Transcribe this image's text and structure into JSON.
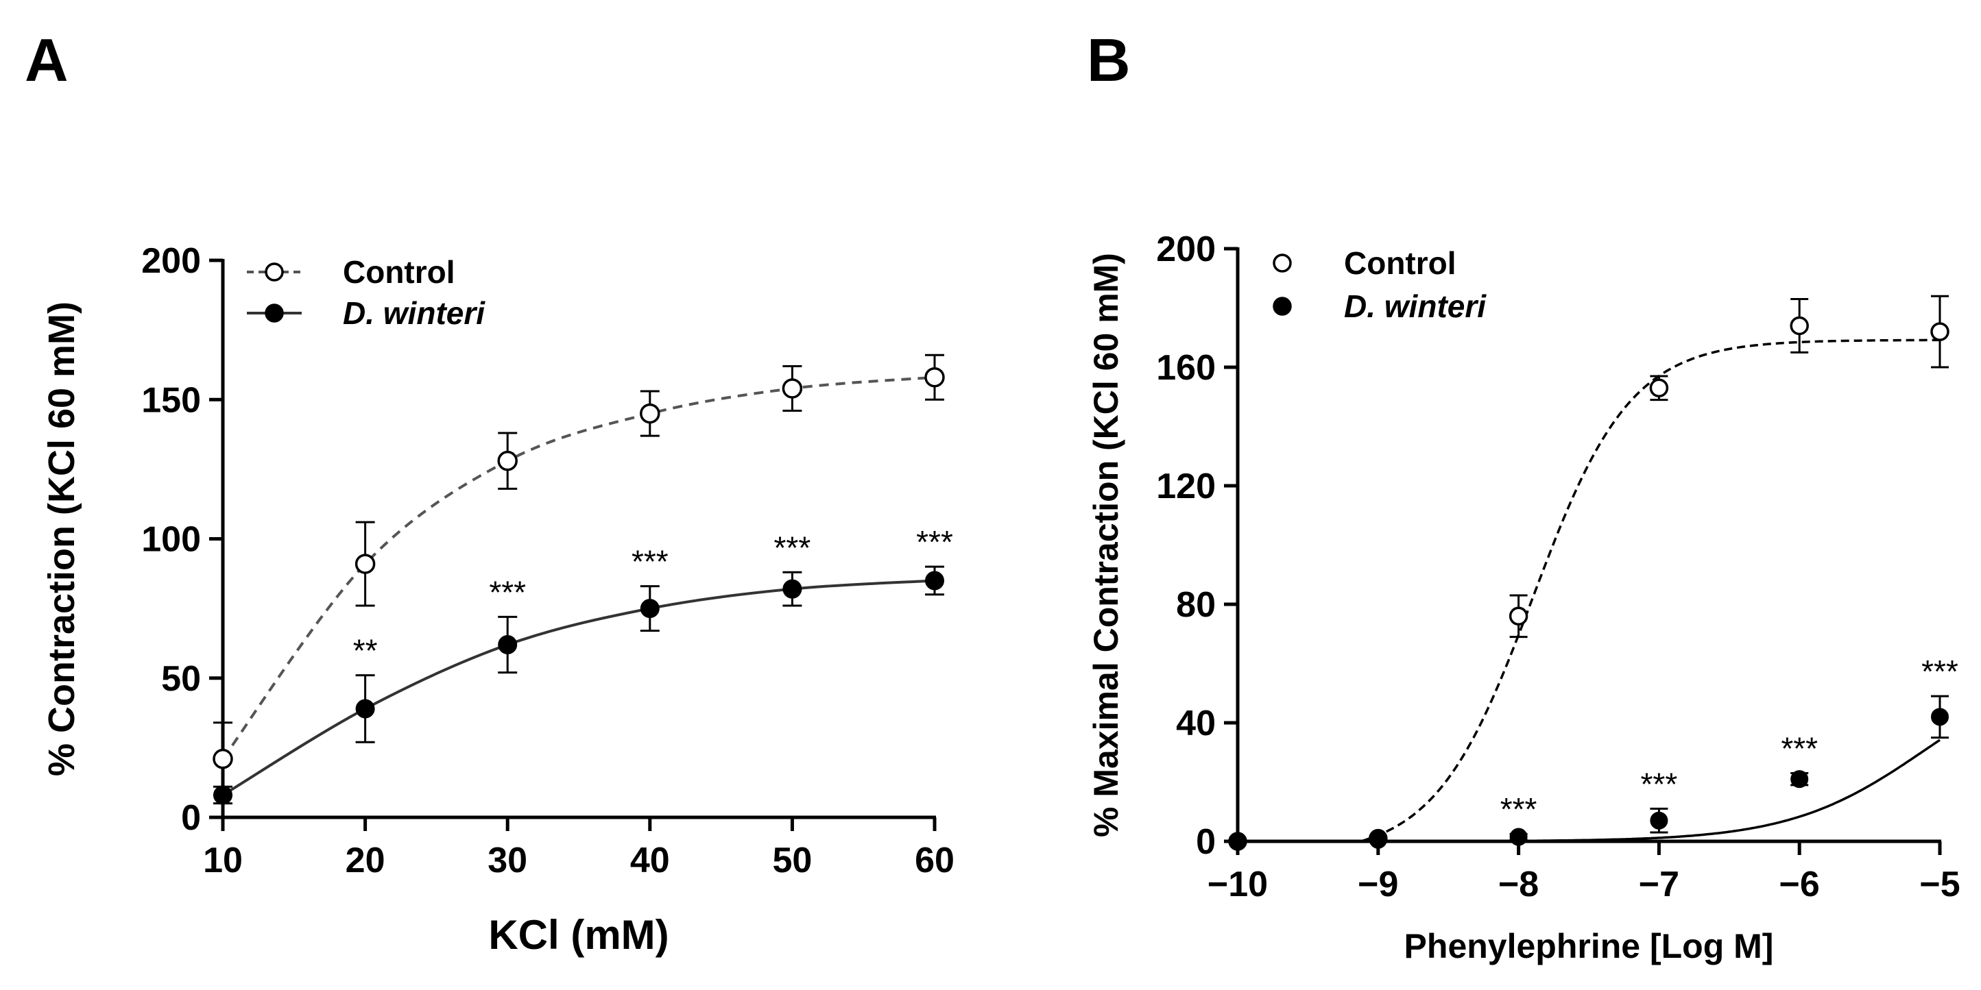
{
  "chart_data": [
    {
      "panel": "A",
      "type": "line",
      "xlabel": "KCl (mM)",
      "ylabel": "% Contraction (KCl 60 mM)",
      "xlim": [
        10,
        60
      ],
      "ylim": [
        0,
        200
      ],
      "xticks": [
        10,
        20,
        30,
        40,
        50,
        60
      ],
      "yticks": [
        0,
        50,
        100,
        150,
        200
      ],
      "legend_position": "top-left",
      "x": [
        10,
        20,
        30,
        40,
        50,
        60
      ],
      "series": [
        {
          "name": "Control",
          "marker": "open-circle",
          "line": "dashed",
          "values": [
            21,
            91,
            128,
            145,
            154,
            158
          ],
          "error": [
            13,
            15,
            10,
            8,
            8,
            8
          ]
        },
        {
          "name": "D. winteri",
          "marker": "filled-circle",
          "line": "solid",
          "values": [
            8,
            39,
            62,
            75,
            82,
            85
          ],
          "error": [
            3,
            12,
            10,
            8,
            6,
            5
          ]
        }
      ],
      "annotations": [
        {
          "x": 20,
          "text": "**"
        },
        {
          "x": 30,
          "text": "***"
        },
        {
          "x": 40,
          "text": "***"
        },
        {
          "x": 50,
          "text": "***"
        },
        {
          "x": 60,
          "text": "***"
        }
      ]
    },
    {
      "panel": "B",
      "type": "line",
      "xlabel": "Phenylephrine [Log M]",
      "ylabel": "% Maximal Contraction (KCl 60 mM)",
      "xlim": [
        -10,
        -5
      ],
      "ylim": [
        0,
        200
      ],
      "xticks": [
        -10,
        -9,
        -8,
        -7,
        -6,
        -5
      ],
      "xtick_labels": [
        "−10",
        "−9",
        "−8",
        "−7",
        "−6",
        "−5"
      ],
      "yticks": [
        0,
        40,
        80,
        120,
        160,
        200
      ],
      "legend_position": "top-left",
      "x": [
        -10,
        -9,
        -8,
        -7,
        -6,
        -5
      ],
      "series": [
        {
          "name": "Control",
          "marker": "open-circle",
          "line": "dashed",
          "values": [
            0,
            1,
            76,
            153,
            174,
            172
          ],
          "error": [
            0,
            0,
            7,
            4,
            9,
            12
          ]
        },
        {
          "name": "D. winteri",
          "marker": "filled-circle",
          "line": "solid",
          "values": [
            0,
            0.5,
            1.5,
            7,
            21,
            42
          ],
          "error": [
            0,
            0,
            1,
            4,
            2,
            7
          ]
        }
      ],
      "annotations": [
        {
          "x": -8,
          "text": "***"
        },
        {
          "x": -7,
          "text": "***"
        },
        {
          "x": -6,
          "text": "***"
        },
        {
          "x": -5,
          "text": "***"
        }
      ]
    }
  ]
}
